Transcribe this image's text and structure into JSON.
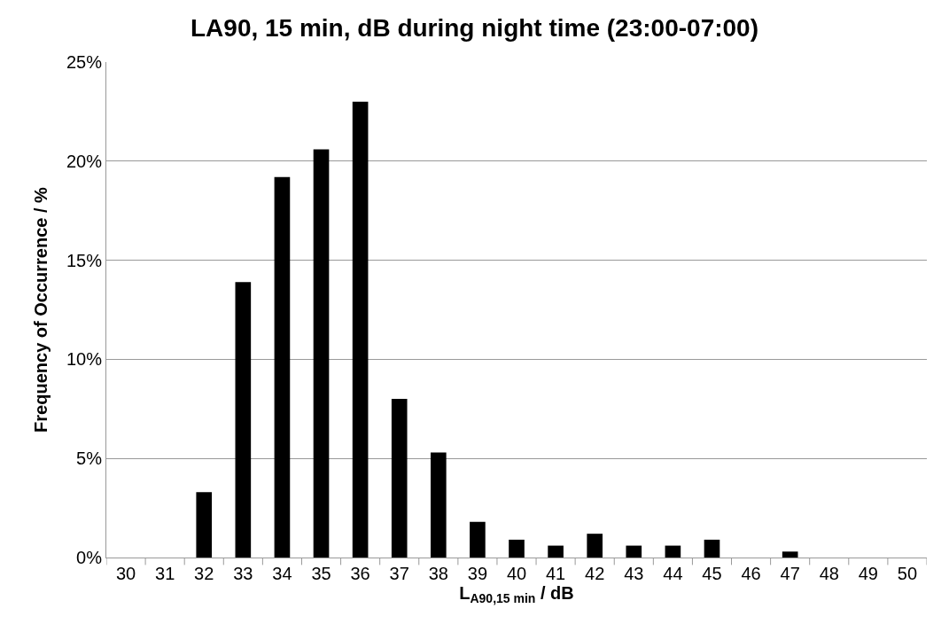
{
  "chart_data": {
    "type": "bar",
    "title": "LA90, 15 min, dB during night time (23:00-07:00)",
    "xlabel": "L$_{A90,15 min}$ / dB",
    "ylabel": "Frequency of Occurrence / %",
    "categories": [
      "30",
      "31",
      "32",
      "33",
      "34",
      "35",
      "36",
      "37",
      "38",
      "39",
      "40",
      "41",
      "42",
      "43",
      "44",
      "45",
      "46",
      "47",
      "48",
      "49",
      "50"
    ],
    "values": [
      0,
      0,
      3.3,
      13.9,
      19.2,
      20.6,
      23.0,
      8.0,
      5.3,
      1.8,
      0.9,
      0.6,
      1.2,
      0.6,
      0.6,
      0.9,
      0,
      0.3,
      0,
      0,
      0
    ],
    "color": "#000000",
    "ylim": [
      0,
      25
    ],
    "yticks": [
      {
        "value": 0,
        "label": "0%"
      },
      {
        "value": 5,
        "label": "5%"
      },
      {
        "value": 10,
        "label": "10%"
      },
      {
        "value": 15,
        "label": "15%"
      },
      {
        "value": 20,
        "label": "20%"
      },
      {
        "value": 25,
        "label": "25%"
      }
    ],
    "grid": "y"
  }
}
